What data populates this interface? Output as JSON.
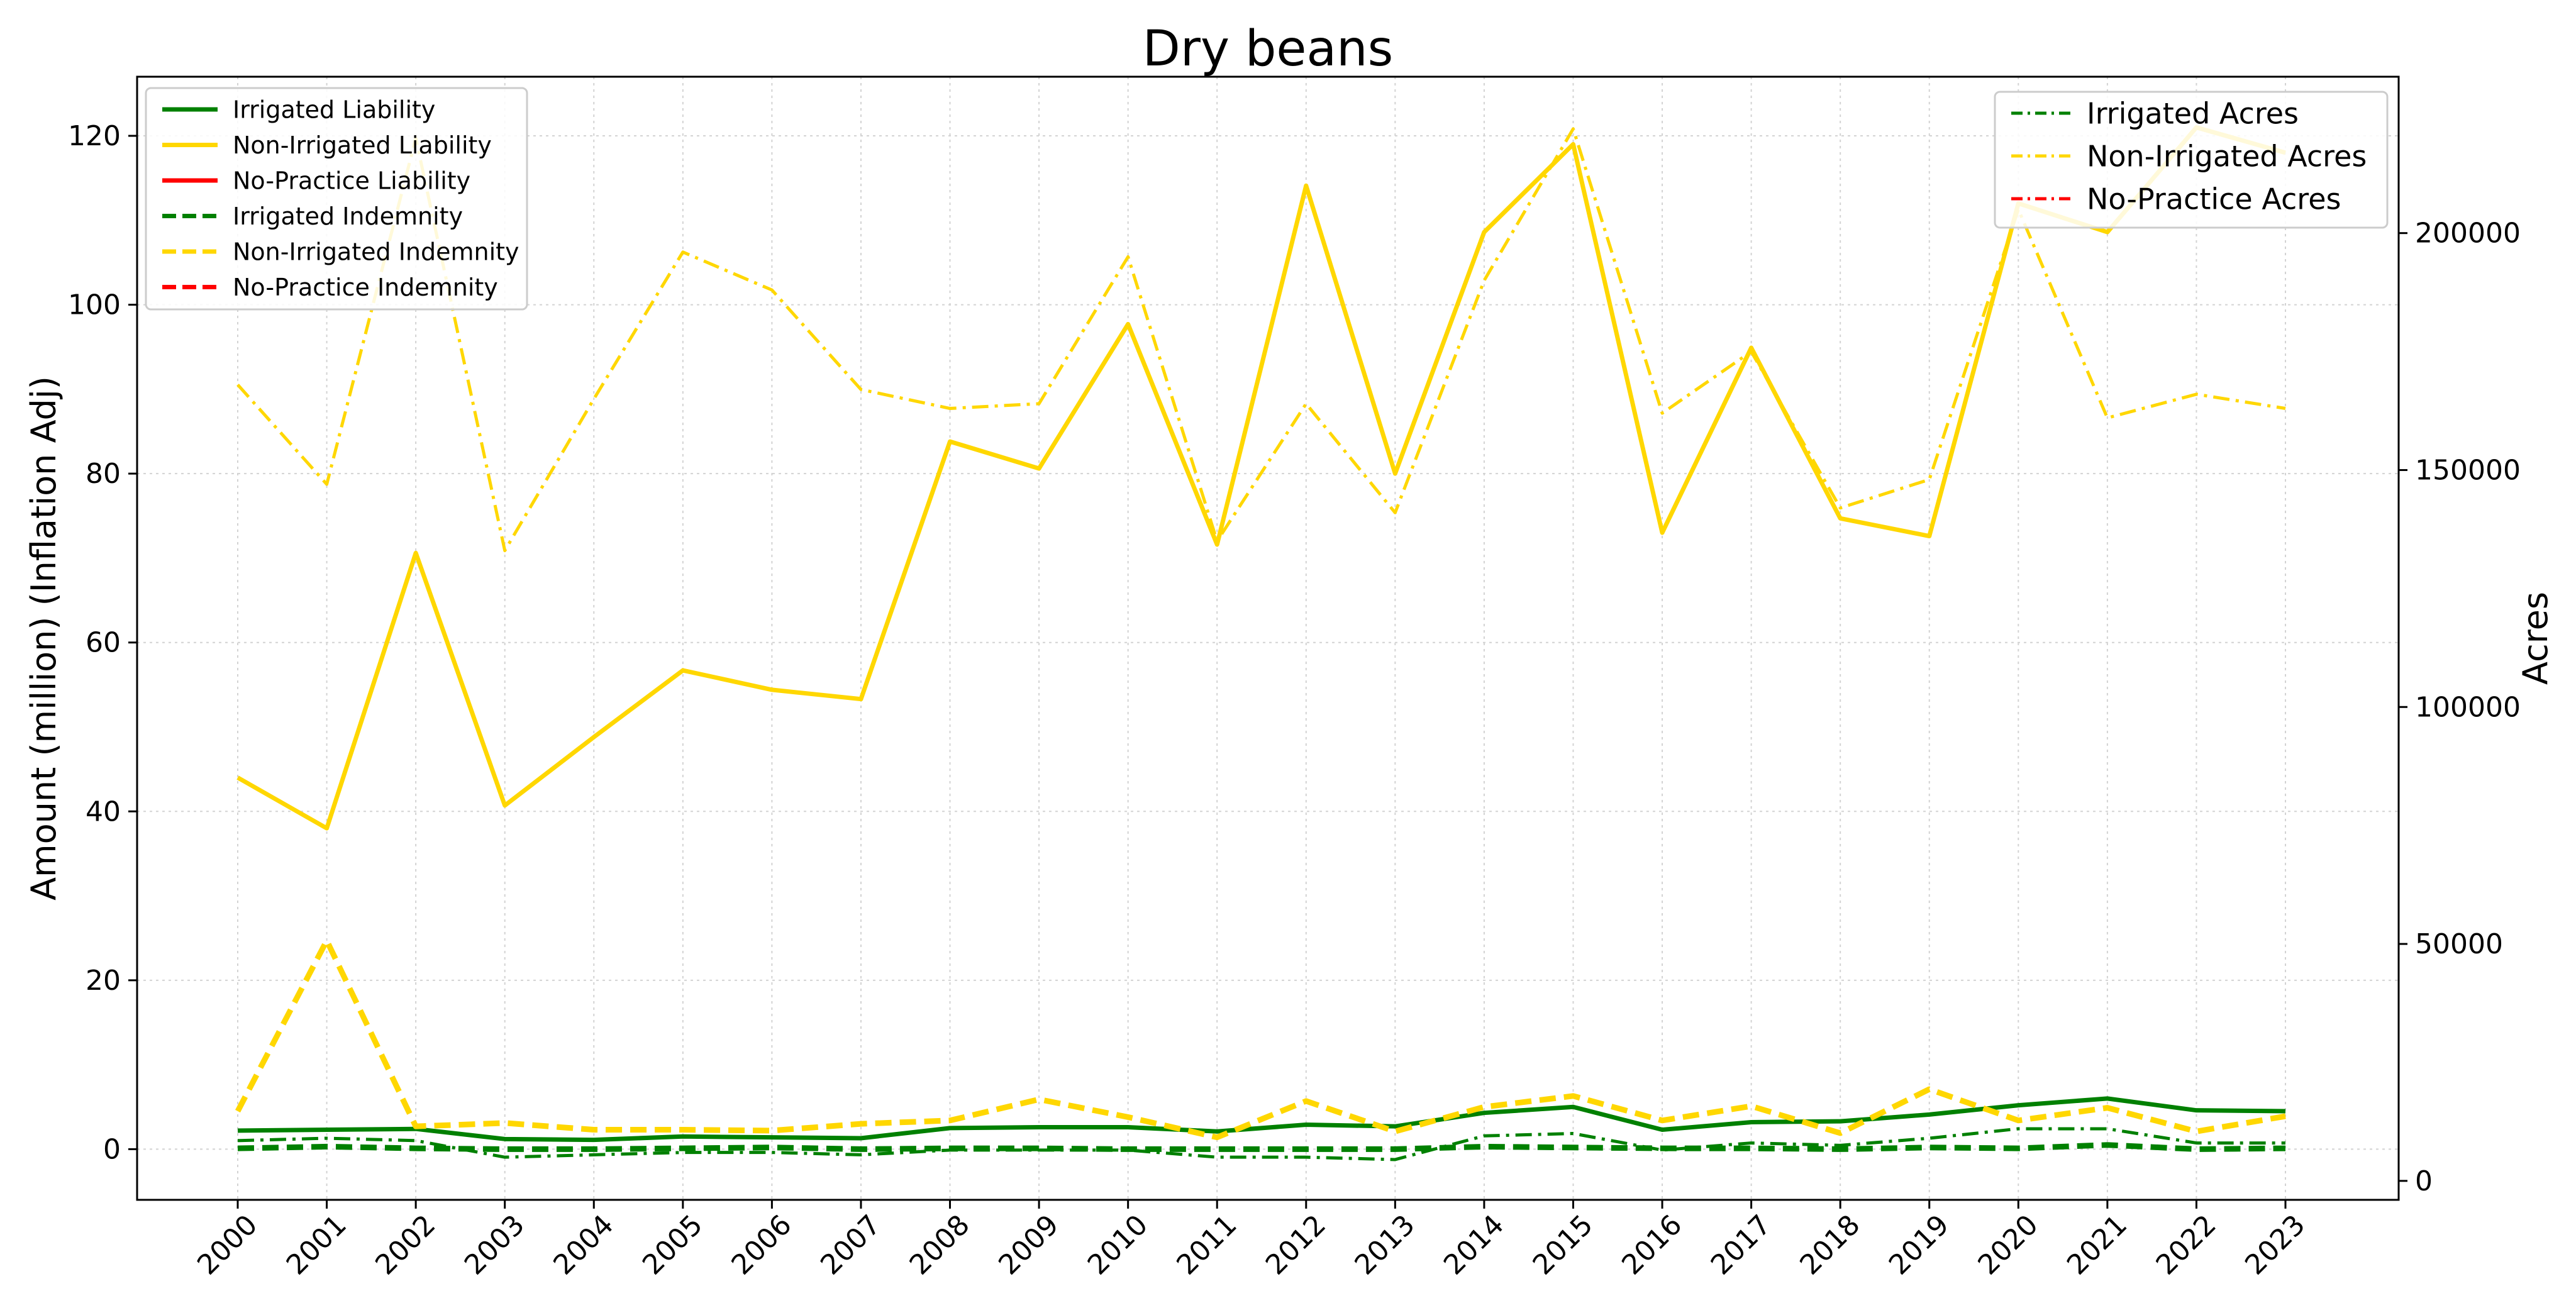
{
  "chart_data": {
    "type": "line",
    "title": "Dry beans",
    "ylabel_left": "Amount (million) (Inflation Adj)",
    "ylabel_right": "Acres",
    "xlabel": "",
    "x": [
      2000,
      2001,
      2002,
      2003,
      2004,
      2005,
      2006,
      2007,
      2008,
      2009,
      2010,
      2011,
      2012,
      2013,
      2014,
      2015,
      2016,
      2017,
      2018,
      2019,
      2020,
      2021,
      2022,
      2023
    ],
    "ylim_left": [
      -6,
      127
    ],
    "ylim_right": [
      -4000,
      233000
    ],
    "yticks_left": [
      0,
      20,
      40,
      60,
      80,
      100,
      120
    ],
    "yticks_right": [
      0,
      50000,
      100000,
      150000,
      200000
    ],
    "grid": true,
    "colors": {
      "irrigated": "#008000",
      "non_irrigated": "#FFD700",
      "no_practice": "#FF0000"
    },
    "series_left": [
      {
        "name": "Irrigated Liability",
        "color": "#008000",
        "dash": "solid",
        "values": [
          2.2,
          2.3,
          2.4,
          1.2,
          1.1,
          1.5,
          1.4,
          1.3,
          2.5,
          2.6,
          2.6,
          2.1,
          2.9,
          2.7,
          4.3,
          5.0,
          2.3,
          3.2,
          3.3,
          4.1,
          5.2,
          6.0,
          4.6,
          4.5
        ]
      },
      {
        "name": "Non-Irrigated Liability",
        "color": "#FFD700",
        "dash": "solid",
        "values": [
          44.0,
          38.0,
          70.6,
          40.7,
          48.8,
          56.7,
          54.4,
          53.3,
          83.8,
          80.6,
          97.7,
          71.6,
          114.1,
          80.0,
          108.6,
          119.0,
          73.0,
          94.9,
          74.7,
          72.6,
          112.0,
          108.6,
          121.0,
          118.0
        ]
      },
      {
        "name": "No-Practice Liability",
        "color": "#FF0000",
        "dash": "solid",
        "values": []
      },
      {
        "name": "Irrigated Indemnity",
        "color": "#008000",
        "dash": "dashed",
        "values": [
          0.1,
          0.3,
          0.1,
          0.0,
          0.0,
          0.1,
          0.2,
          0.0,
          0.1,
          0.1,
          0.0,
          0.0,
          0.0,
          0.0,
          0.3,
          0.2,
          0.1,
          0.1,
          0.0,
          0.2,
          0.1,
          0.5,
          0.0,
          0.1
        ]
      },
      {
        "name": "Non-Irrigated Indemnity",
        "color": "#FFD700",
        "dash": "dashed",
        "values": [
          4.5,
          24.7,
          2.7,
          3.1,
          2.3,
          2.3,
          2.2,
          3.0,
          3.4,
          5.9,
          3.8,
          1.4,
          5.7,
          2.1,
          5.0,
          6.3,
          3.4,
          5.1,
          1.9,
          7.1,
          3.4,
          4.9,
          2.1,
          3.9
        ]
      },
      {
        "name": "No-Practice Indemnity",
        "color": "#FF0000",
        "dash": "dashed",
        "values": []
      }
    ],
    "series_right": [
      {
        "name": "Irrigated Acres",
        "color": "#008000",
        "dash": "dashdot",
        "values": [
          8500,
          9000,
          8500,
          5000,
          5500,
          6000,
          6000,
          5500,
          6500,
          6500,
          6500,
          5000,
          5000,
          4500,
          9500,
          10000,
          6500,
          8000,
          7500,
          9000,
          11000,
          11000,
          8000,
          8000
        ]
      },
      {
        "name": "Non-Irrigated Acres",
        "color": "#FFD700",
        "dash": "dashdot",
        "values": [
          168000,
          147000,
          220000,
          133000,
          165000,
          196000,
          188000,
          167000,
          163000,
          164000,
          195000,
          135000,
          164000,
          141000,
          190000,
          222000,
          162000,
          175000,
          142000,
          148000,
          205000,
          161000,
          166000,
          163000
        ]
      },
      {
        "name": "No-Practice Acres",
        "color": "#FF0000",
        "dash": "dashdot",
        "values": []
      }
    ],
    "legend_left_position": "top-left",
    "legend_right_position": "top-right"
  }
}
